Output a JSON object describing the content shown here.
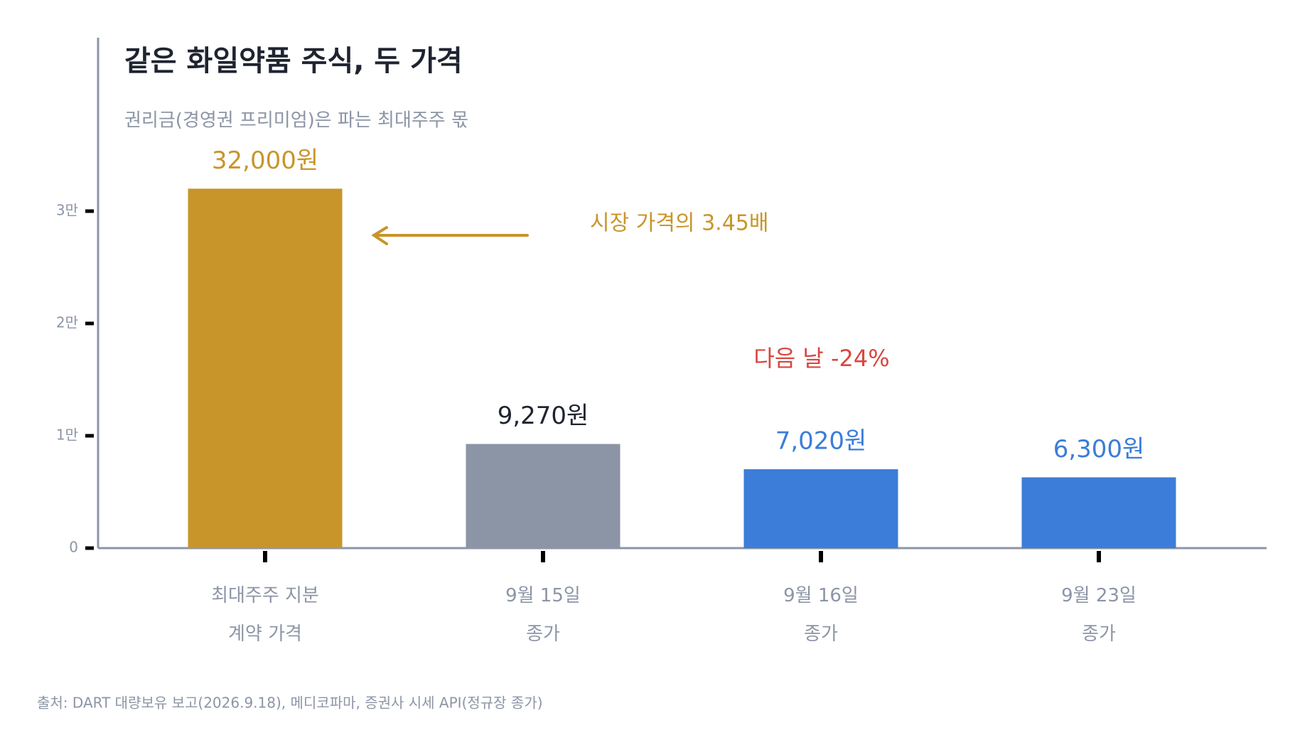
{
  "chart_data": {
    "type": "bar",
    "title": "같은 화일약품 주식, 두 가격",
    "subtitle": "권리금(경영권 프리미엄)은 파는 최대주주 몫",
    "categories": [
      "최대주주 지분\n계약 가격",
      "9월 15일\n종가",
      "9월 16일\n종가",
      "9월 23일\n종가"
    ],
    "values": [
      32000,
      9270,
      7020,
      6300
    ],
    "value_labels": [
      "32,000원",
      "9,270원",
      "7,020원",
      "6,300원"
    ],
    "colors": [
      "#c8952b",
      "#8c95a6",
      "#3b7dd8",
      "#3b7dd8"
    ],
    "ylim": [
      0,
      45000
    ],
    "yticks": [
      0,
      {
        "value": 10000,
        "label": "1만"
      },
      {
        "value": 20000,
        "label": "2만"
      },
      {
        "value": 30000,
        "label": "3만"
      }
    ],
    "annotations": [
      {
        "text": "시장 가격의 3.45배",
        "color": "#c8952b"
      },
      {
        "text": "다음 날 -24%",
        "color": "#d9463f"
      }
    ],
    "source": "출처: DART 대량보유 보고(2026.9.18), 메디코파마, 증권사 시세 API(정규장 종가)"
  }
}
